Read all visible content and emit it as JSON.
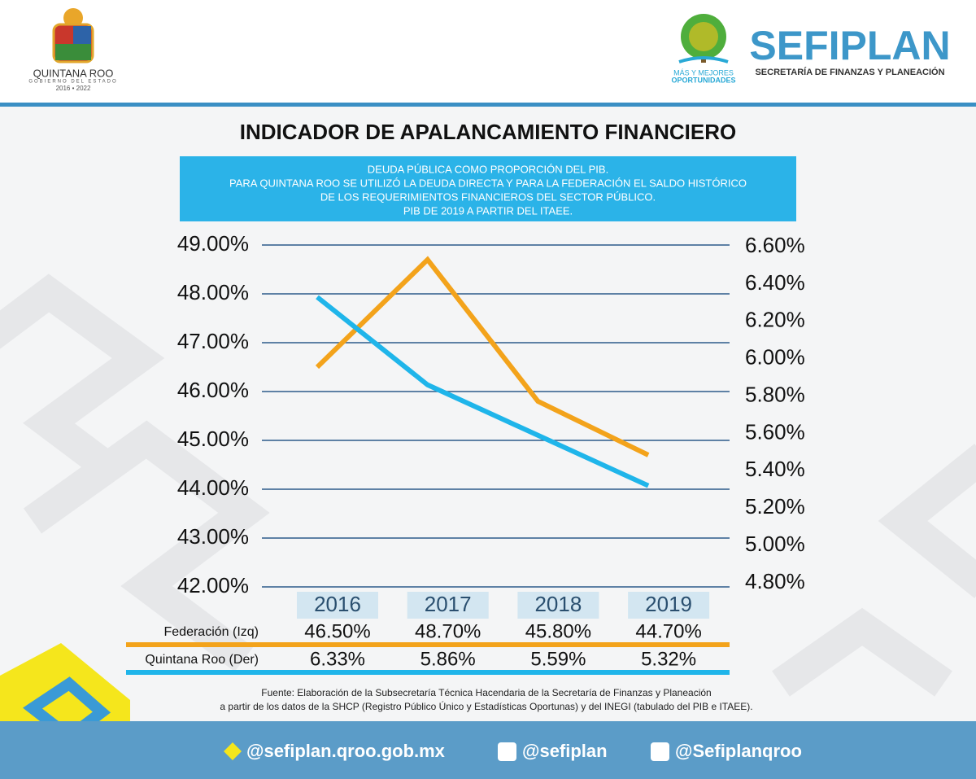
{
  "header": {
    "state": [
      "QUINTANA ROO",
      "GOBIERNO DEL ESTADO",
      "2016 • 2022"
    ],
    "slogan": [
      "MÁS Y MEJORES",
      "OPORTUNIDADES"
    ],
    "agency": "SEFIPLAN",
    "agency_full": "SECRETARÍA DE FINANZAS Y PLANEACIÓN"
  },
  "chart_data": {
    "type": "line",
    "title": "INDICADOR DE APALANCAMIENTO FINANCIERO",
    "subtitle": [
      "DEUDA PÚBLICA COMO PROPORCIÓN DEL PIB.",
      "PARA QUINTANA ROO SE UTILIZÓ LA DEUDA DIRECTA Y PARA LA FEDERACIÓN EL SALDO HISTÓRICO",
      "DE LOS REQUERIMIENTOS FINANCIEROS DEL SECTOR PÚBLICO.",
      "PIB DE 2019 A PARTIR DEL ITAEE."
    ],
    "categories": [
      "2016",
      "2017",
      "2018",
      "2019"
    ],
    "series": [
      {
        "name": "Federación (Izq)",
        "color": "#f3a31b",
        "axis": "y",
        "values": [
          46.5,
          48.7,
          45.8,
          44.7
        ],
        "value_labels": [
          "46.50%",
          "48.70%",
          "45.80%",
          "44.70%"
        ]
      },
      {
        "name": "Quintana Roo (Der)",
        "color": "#1fb5ea",
        "axis": "y2",
        "values": [
          6.33,
          5.86,
          5.59,
          5.32
        ],
        "value_labels": [
          "6.33%",
          "5.86%",
          "5.59%",
          "5.32%"
        ]
      }
    ],
    "ylim": [
      42,
      49
    ],
    "yticks": [
      {
        "value": 42,
        "label": "42.00%"
      },
      {
        "value": 43,
        "label": "43.00%"
      },
      {
        "value": 44,
        "label": "44.00%"
      },
      {
        "value": 45,
        "label": "45.00%"
      },
      {
        "value": 46,
        "label": "46.00%"
      },
      {
        "value": 47,
        "label": "47.00%"
      },
      {
        "value": 48,
        "label": "48.00%"
      },
      {
        "value": 49,
        "label": "49.00%"
      }
    ],
    "y2lim": [
      4.8,
      6.6
    ],
    "y2ticks": [
      {
        "value": 4.8,
        "label": "4.80%"
      },
      {
        "value": 5.0,
        "label": "5.00%"
      },
      {
        "value": 5.2,
        "label": "5.20%"
      },
      {
        "value": 5.4,
        "label": "5.40%"
      },
      {
        "value": 5.6,
        "label": "5.60%"
      },
      {
        "value": 5.8,
        "label": "5.80%"
      },
      {
        "value": 6.0,
        "label": "6.00%"
      },
      {
        "value": 6.2,
        "label": "6.20%"
      },
      {
        "value": 6.4,
        "label": "6.40%"
      },
      {
        "value": 6.6,
        "label": "6.60%"
      }
    ],
    "grid": true
  },
  "source": [
    "Fuente: Elaboración de la Subsecretaría Técnica Hacendaria de la Secretaría de Finanzas y Planeación",
    "a partir de los datos de la SHCP (Registro Público Único y Estadísticas Oportunas) y del INEGI (tabulado del PIB e ITAEE)."
  ],
  "social": [
    "@sefiplan.qroo.gob.mx",
    "@sefiplan",
    "@Sefiplanqroo"
  ]
}
